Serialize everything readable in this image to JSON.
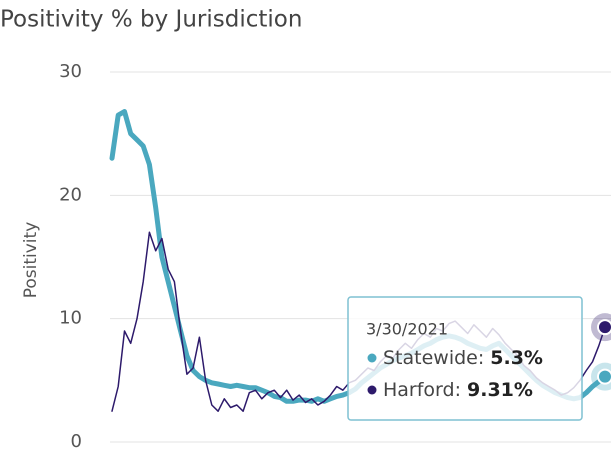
{
  "chart_data": {
    "type": "line",
    "title": "Positivity % by Jurisdiction",
    "y_label": "Positivity",
    "ylim": [
      0,
      30
    ],
    "yticks": [
      0,
      10,
      20,
      30
    ],
    "grid": true,
    "series": [
      {
        "color": "#4aa8bf",
        "values": [
          23,
          26.5,
          26.8,
          25,
          24.5,
          24,
          22.5,
          19,
          15,
          13,
          11,
          9,
          7,
          5.8,
          5.3,
          5,
          4.8,
          4.7,
          4.6,
          4.5,
          4.6,
          4.5,
          4.4,
          4.4,
          4.2,
          4,
          3.7,
          3.6,
          3.3,
          3.3,
          3.4,
          3.4,
          3.3,
          3.5,
          3.3,
          3.5,
          3.7,
          3.8,
          4,
          4.3,
          4.8,
          5.2,
          5.6,
          6,
          6.3,
          6.6,
          6.8,
          7,
          7.2,
          7.5,
          7.8,
          8,
          8.3,
          8.5,
          8.6,
          8.5,
          8.3,
          8,
          7.8,
          7.6,
          7.5,
          7.8,
          8,
          7.5,
          7,
          6.5,
          6,
          5.5,
          5,
          4.6,
          4.3,
          4,
          3.8,
          3.6,
          3.5,
          3.6,
          4,
          4.5,
          4.9,
          5.3
        ]
      },
      {
        "color": "#2d1a6b",
        "values": [
          2.5,
          4.5,
          9,
          8,
          10,
          13,
          17,
          15.5,
          16.5,
          14,
          13,
          9,
          5.5,
          6,
          8.5,
          5,
          3,
          2.5,
          3.5,
          2.8,
          3,
          2.5,
          4,
          4.2,
          3.5,
          4,
          4.2,
          3.6,
          4.2,
          3.4,
          3.8,
          3.2,
          3.5,
          3,
          3.3,
          3.8,
          4.5,
          4.2,
          4.8,
          5,
          5.5,
          6,
          5.8,
          6.5,
          7,
          6.8,
          7.5,
          8,
          7.6,
          8.3,
          8.8,
          8.5,
          9.2,
          9,
          9.6,
          9.8,
          9.3,
          8.8,
          9.5,
          9,
          8.5,
          9.2,
          8.7,
          8,
          7.5,
          7,
          6.2,
          5.8,
          5.2,
          4.8,
          4.5,
          4.2,
          3.8,
          4,
          4.4,
          5,
          5.8,
          6.5,
          7.8,
          9.31
        ]
      }
    ],
    "tooltip": {
      "title": "3/30/2021",
      "items": [
        {
          "name": "Statewide:",
          "value": 5.3,
          "label": "5.3%",
          "color": "#4aa8bf"
        },
        {
          "name": "Harford:",
          "value": 9.31,
          "label": "9.31%",
          "color": "#2d1a6b"
        }
      ]
    }
  }
}
